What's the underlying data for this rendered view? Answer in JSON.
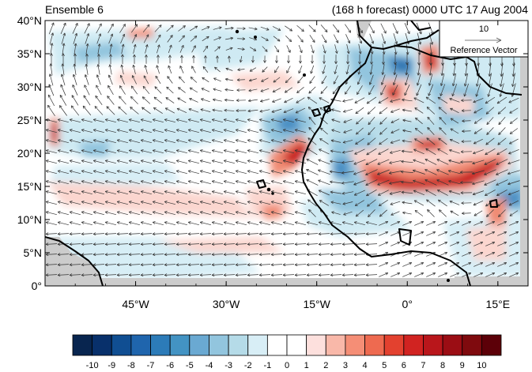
{
  "title_left": "Ensemble 6",
  "title_right": "(168 h forecast) 0000 UTC 17 Aug 2004",
  "lat_ticks": [
    {
      "value": 40,
      "label": "40°N"
    },
    {
      "value": 35,
      "label": "35°N"
    },
    {
      "value": 30,
      "label": "30°N"
    },
    {
      "value": 25,
      "label": "25°N"
    },
    {
      "value": 20,
      "label": "20°N"
    },
    {
      "value": 15,
      "label": "15°N"
    },
    {
      "value": 10,
      "label": "10°N"
    },
    {
      "value": 5,
      "label": "5°N"
    },
    {
      "value": 0,
      "label": "0°"
    }
  ],
  "lon_ticks": [
    {
      "value": -45,
      "label": "45°W"
    },
    {
      "value": -30,
      "label": "30°W"
    },
    {
      "value": -15,
      "label": "15°W"
    },
    {
      "value": 0,
      "label": "0°"
    },
    {
      "value": 15,
      "label": "15°E"
    }
  ],
  "map_extent": {
    "lon": [
      -60,
      20
    ],
    "lat": [
      0,
      40
    ]
  },
  "reference_vector": {
    "magnitude": "10",
    "label": "Reference Vector"
  },
  "colorbar": {
    "labels": [
      "-10",
      "-9",
      "-8",
      "-7",
      "-6",
      "-5",
      "-4",
      "-3",
      "-2",
      "-1",
      "0",
      "1",
      "2",
      "3",
      "4",
      "5",
      "6",
      "7",
      "8",
      "9",
      "10"
    ],
    "colors": [
      "#08254f",
      "#08306b",
      "#104e92",
      "#1f65ad",
      "#2c7bb8",
      "#4393c3",
      "#6aa9d2",
      "#92c5de",
      "#b5dbe8",
      "#d8eef6",
      "#ffffff",
      "#ffffff",
      "#fde0dd",
      "#f9b8a9",
      "#f58e76",
      "#ee6a50",
      "#e3412f",
      "#d12321",
      "#b9161b",
      "#9b0d14",
      "#7f0a0e",
      "#5c0008"
    ]
  },
  "chart_data": {
    "type": "heatmap",
    "x_range": [
      -60,
      20
    ],
    "y_range": [
      0,
      40
    ],
    "value_range": [
      -10,
      10
    ]
  }
}
